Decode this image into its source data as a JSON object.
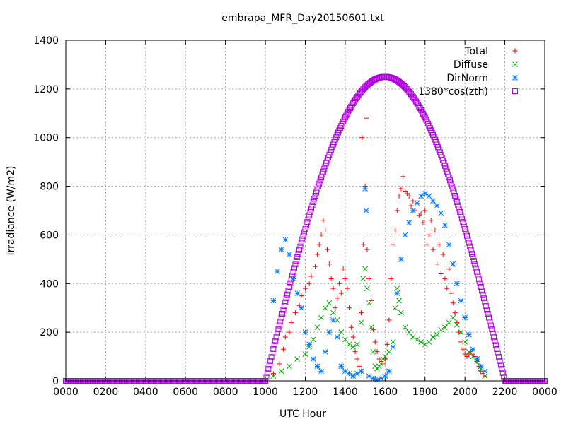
{
  "chart_data": {
    "type": "scatter",
    "title": "embrapa_MFR_Day20150601.txt",
    "xlabel": "UTC Hour",
    "ylabel": "Irradiance (W/m2)",
    "xlim": [
      0,
      24
    ],
    "ylim": [
      0,
      1400
    ],
    "x_ticks": [
      {
        "value": 0,
        "label": "0000"
      },
      {
        "value": 2,
        "label": "0200"
      },
      {
        "value": 4,
        "label": "0400"
      },
      {
        "value": 6,
        "label": "0600"
      },
      {
        "value": 8,
        "label": "0800"
      },
      {
        "value": 10,
        "label": "1000"
      },
      {
        "value": 12,
        "label": "1200"
      },
      {
        "value": 14,
        "label": "1400"
      },
      {
        "value": 16,
        "label": "1600"
      },
      {
        "value": 18,
        "label": "1800"
      },
      {
        "value": 20,
        "label": "2000"
      },
      {
        "value": 22,
        "label": "2200"
      },
      {
        "value": 24,
        "label": "0000"
      }
    ],
    "y_ticks": [
      0,
      200,
      400,
      600,
      800,
      1000,
      1200,
      1400
    ],
    "grid": true,
    "legend_position": "top-right",
    "series": [
      {
        "name": "Total",
        "color": "#ff0000",
        "marker": "plus",
        "points": [
          [
            10.4,
            30
          ],
          [
            10.7,
            70
          ],
          [
            10.9,
            130
          ],
          [
            11.0,
            180
          ],
          [
            11.2,
            200
          ],
          [
            11.3,
            240
          ],
          [
            11.5,
            280
          ],
          [
            11.7,
            310
          ],
          [
            11.8,
            350
          ],
          [
            12.0,
            380
          ],
          [
            12.2,
            400
          ],
          [
            12.3,
            430
          ],
          [
            12.5,
            470
          ],
          [
            12.6,
            520
          ],
          [
            12.7,
            560
          ],
          [
            12.8,
            600
          ],
          [
            12.9,
            660
          ],
          [
            13.0,
            620
          ],
          [
            13.1,
            540
          ],
          [
            13.2,
            480
          ],
          [
            13.3,
            420
          ],
          [
            13.4,
            380
          ],
          [
            13.5,
            300
          ],
          [
            13.6,
            340
          ],
          [
            13.7,
            400
          ],
          [
            13.8,
            360
          ],
          [
            13.9,
            460
          ],
          [
            14.0,
            420
          ],
          [
            14.1,
            380
          ],
          [
            14.2,
            300
          ],
          [
            14.3,
            220
          ],
          [
            14.4,
            180
          ],
          [
            14.5,
            120
          ],
          [
            14.6,
            90
          ],
          [
            14.7,
            60
          ],
          [
            14.8,
            280
          ],
          [
            14.9,
            560
          ],
          [
            15.0,
            800
          ],
          [
            15.05,
            1080
          ],
          [
            14.85,
            1000
          ],
          [
            15.1,
            540
          ],
          [
            15.2,
            420
          ],
          [
            15.3,
            330
          ],
          [
            15.4,
            210
          ],
          [
            15.5,
            160
          ],
          [
            15.6,
            120
          ],
          [
            15.7,
            90
          ],
          [
            15.8,
            80
          ],
          [
            15.9,
            70
          ],
          [
            16.0,
            90
          ],
          [
            16.1,
            150
          ],
          [
            16.2,
            250
          ],
          [
            16.3,
            420
          ],
          [
            16.4,
            560
          ],
          [
            16.5,
            620
          ],
          [
            16.6,
            700
          ],
          [
            16.7,
            760
          ],
          [
            16.8,
            790
          ],
          [
            16.9,
            840
          ],
          [
            17.0,
            780
          ],
          [
            17.1,
            770
          ],
          [
            17.2,
            760
          ],
          [
            17.3,
            720
          ],
          [
            17.4,
            740
          ],
          [
            17.5,
            700
          ],
          [
            17.6,
            740
          ],
          [
            17.7,
            680
          ],
          [
            17.8,
            690
          ],
          [
            17.9,
            650
          ],
          [
            18.0,
            700
          ],
          [
            18.1,
            560
          ],
          [
            18.2,
            600
          ],
          [
            18.3,
            660
          ],
          [
            18.4,
            540
          ],
          [
            18.5,
            620
          ],
          [
            18.6,
            480
          ],
          [
            18.7,
            560
          ],
          [
            18.8,
            440
          ],
          [
            18.9,
            520
          ],
          [
            19.0,
            420
          ],
          [
            19.1,
            380
          ],
          [
            19.2,
            460
          ],
          [
            19.3,
            360
          ],
          [
            19.4,
            320
          ],
          [
            19.5,
            280
          ],
          [
            19.6,
            240
          ],
          [
            19.7,
            200
          ],
          [
            19.8,
            160
          ],
          [
            19.9,
            130
          ],
          [
            20.0,
            110
          ],
          [
            20.1,
            100
          ],
          [
            20.2,
            110
          ],
          [
            20.3,
            120
          ],
          [
            20.4,
            110
          ],
          [
            20.5,
            100
          ],
          [
            20.6,
            80
          ],
          [
            20.7,
            60
          ],
          [
            20.8,
            40
          ],
          [
            20.9,
            30
          ],
          [
            21.0,
            20
          ]
        ]
      },
      {
        "name": "Diffuse",
        "color": "#00aa00",
        "marker": "cross",
        "points": [
          [
            10.4,
            20
          ],
          [
            10.8,
            40
          ],
          [
            11.2,
            60
          ],
          [
            11.6,
            90
          ],
          [
            12.0,
            110
          ],
          [
            12.2,
            140
          ],
          [
            12.4,
            170
          ],
          [
            12.6,
            220
          ],
          [
            12.8,
            260
          ],
          [
            13.0,
            300
          ],
          [
            13.2,
            320
          ],
          [
            13.4,
            280
          ],
          [
            13.6,
            250
          ],
          [
            13.8,
            200
          ],
          [
            14.0,
            170
          ],
          [
            14.2,
            150
          ],
          [
            14.4,
            140
          ],
          [
            14.6,
            150
          ],
          [
            14.8,
            240
          ],
          [
            14.9,
            420
          ],
          [
            15.0,
            460
          ],
          [
            15.1,
            380
          ],
          [
            15.2,
            320
          ],
          [
            15.3,
            220
          ],
          [
            15.4,
            120
          ],
          [
            15.5,
            60
          ],
          [
            15.6,
            50
          ],
          [
            15.7,
            60
          ],
          [
            15.8,
            70
          ],
          [
            15.9,
            90
          ],
          [
            16.0,
            100
          ],
          [
            16.2,
            120
          ],
          [
            16.4,
            160
          ],
          [
            16.5,
            300
          ],
          [
            16.6,
            380
          ],
          [
            16.7,
            330
          ],
          [
            16.8,
            280
          ],
          [
            17.0,
            220
          ],
          [
            17.2,
            200
          ],
          [
            17.4,
            180
          ],
          [
            17.6,
            170
          ],
          [
            17.8,
            160
          ],
          [
            18.0,
            150
          ],
          [
            18.2,
            160
          ],
          [
            18.4,
            180
          ],
          [
            18.6,
            190
          ],
          [
            18.8,
            210
          ],
          [
            19.0,
            220
          ],
          [
            19.2,
            240
          ],
          [
            19.4,
            260
          ],
          [
            19.6,
            230
          ],
          [
            19.8,
            200
          ],
          [
            20.0,
            160
          ],
          [
            20.2,
            120
          ],
          [
            20.4,
            100
          ],
          [
            20.6,
            80
          ],
          [
            20.8,
            50
          ],
          [
            21.0,
            20
          ]
        ]
      },
      {
        "name": "DirNorm",
        "color": "#0077ff",
        "marker": "star",
        "points": [
          [
            10.4,
            330
          ],
          [
            10.6,
            450
          ],
          [
            10.8,
            540
          ],
          [
            11.0,
            580
          ],
          [
            11.2,
            520
          ],
          [
            11.4,
            420
          ],
          [
            11.6,
            360
          ],
          [
            11.8,
            300
          ],
          [
            12.0,
            200
          ],
          [
            12.2,
            150
          ],
          [
            12.4,
            90
          ],
          [
            12.6,
            60
          ],
          [
            12.8,
            40
          ],
          [
            13.0,
            120
          ],
          [
            13.2,
            200
          ],
          [
            13.4,
            250
          ],
          [
            13.6,
            180
          ],
          [
            13.8,
            60
          ],
          [
            14.0,
            40
          ],
          [
            14.2,
            30
          ],
          [
            14.4,
            20
          ],
          [
            14.6,
            30
          ],
          [
            14.8,
            40
          ],
          [
            15.0,
            790
          ],
          [
            15.05,
            700
          ],
          [
            15.2,
            20
          ],
          [
            15.4,
            10
          ],
          [
            15.6,
            5
          ],
          [
            15.8,
            10
          ],
          [
            16.0,
            20
          ],
          [
            16.2,
            40
          ],
          [
            16.4,
            140
          ],
          [
            16.6,
            360
          ],
          [
            16.8,
            500
          ],
          [
            17.0,
            600
          ],
          [
            17.2,
            650
          ],
          [
            17.4,
            700
          ],
          [
            17.6,
            730
          ],
          [
            17.8,
            760
          ],
          [
            18.0,
            770
          ],
          [
            18.2,
            760
          ],
          [
            18.4,
            740
          ],
          [
            18.6,
            720
          ],
          [
            18.8,
            690
          ],
          [
            19.0,
            640
          ],
          [
            19.2,
            560
          ],
          [
            19.4,
            480
          ],
          [
            19.6,
            400
          ],
          [
            19.8,
            330
          ],
          [
            20.0,
            260
          ],
          [
            20.2,
            190
          ],
          [
            20.4,
            130
          ],
          [
            20.6,
            90
          ],
          [
            20.8,
            60
          ],
          [
            21.0,
            40
          ]
        ]
      },
      {
        "name": "1380*cos(zth)",
        "color": "#b000e0",
        "marker": "square",
        "curve": {
          "start_hour": 10.0,
          "end_hour": 22.0,
          "peak_hour": 16.0,
          "peak_value": 1250,
          "background_value": 0
        }
      }
    ]
  }
}
